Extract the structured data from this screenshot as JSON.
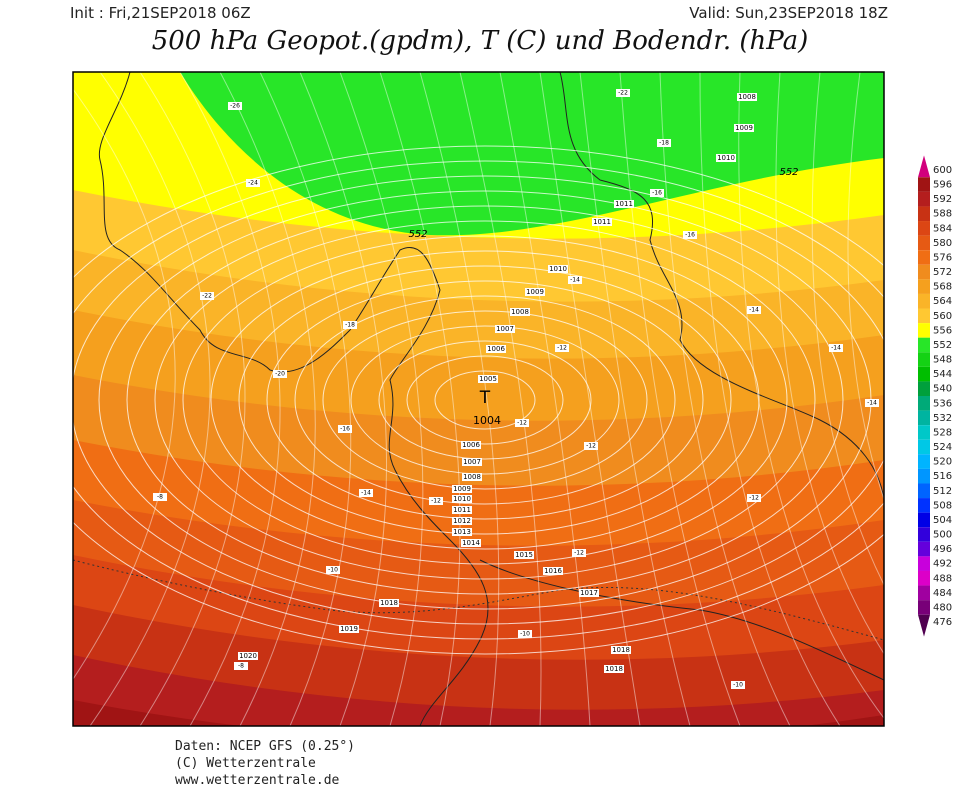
{
  "header": {
    "init": "Init : Fri,21SEP2018 06Z",
    "valid": "Valid: Sun,23SEP2018 18Z",
    "title": "500 hPa Geopot.(gpdm), T (C) und Bodendr. (hPa)"
  },
  "map": {
    "low_center": "T",
    "isobar_labels": [
      1008,
      1009,
      1010,
      1011,
      1011,
      1010,
      1009,
      1008,
      1007,
      1006,
      1005,
      1004,
      1006,
      1007,
      1008,
      1009,
      1010,
      1011,
      1012,
      1013,
      1014,
      1015,
      1016,
      1017,
      1018,
      1019,
      1020,
      1018,
      1018
    ],
    "temperature_labels": [
      -26,
      -22,
      -18,
      -24,
      -16,
      -16,
      -14,
      -22,
      -18,
      -14,
      -12,
      -14,
      -20,
      -14,
      -12,
      -16,
      -12,
      -14,
      -12,
      -12,
      -8,
      -12,
      -10,
      -10,
      -8,
      -10
    ],
    "height_labels": [
      552,
      552
    ]
  },
  "legend": {
    "levels": [
      600,
      596,
      592,
      588,
      584,
      580,
      576,
      572,
      568,
      564,
      560,
      556,
      552,
      548,
      544,
      540,
      536,
      532,
      528,
      524,
      520,
      516,
      512,
      508,
      504,
      500,
      496,
      492,
      488,
      484,
      480,
      476
    ],
    "colors": [
      "#d2007d",
      "#a01414",
      "#b41e1e",
      "#c83214",
      "#dc4614",
      "#e65a14",
      "#f06e14",
      "#f08c1e",
      "#f5a01e",
      "#fab428",
      "#ffc832",
      "#ffff00",
      "#28e628",
      "#14d214",
      "#00be00",
      "#00a03c",
      "#00aa78",
      "#00b4a0",
      "#00c8c8",
      "#00c8e6",
      "#00b4ff",
      "#0096ff",
      "#0064ff",
      "#0032ff",
      "#0000e6",
      "#3200dc",
      "#6400dc",
      "#c800dc",
      "#dc00c8",
      "#a000a0",
      "#780078",
      "#500050"
    ]
  },
  "footer": {
    "lines": [
      "Daten: NCEP GFS (0.25°)",
      "(C) Wetterzentrale",
      "www.wetterzentrale.de"
    ]
  }
}
